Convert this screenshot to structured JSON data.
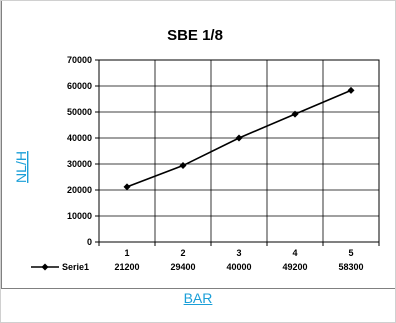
{
  "chart_data": {
    "type": "line",
    "title": "SBE 1/8",
    "xlabel": "BAR",
    "ylabel": "NL/H",
    "categories": [
      "1",
      "2",
      "3",
      "4",
      "5"
    ],
    "series": [
      {
        "name": "Serie1",
        "values": [
          21200,
          29400,
          40000,
          49200,
          58300
        ]
      }
    ],
    "ylim": [
      0,
      70000
    ],
    "yticks": [
      0,
      10000,
      20000,
      30000,
      40000,
      50000,
      60000,
      70000
    ],
    "grid": true,
    "legend_placement": "bottom-left data table",
    "colors": {
      "line": "#000000",
      "marker": "#000000",
      "axis_label": "#1a9fd8"
    }
  }
}
